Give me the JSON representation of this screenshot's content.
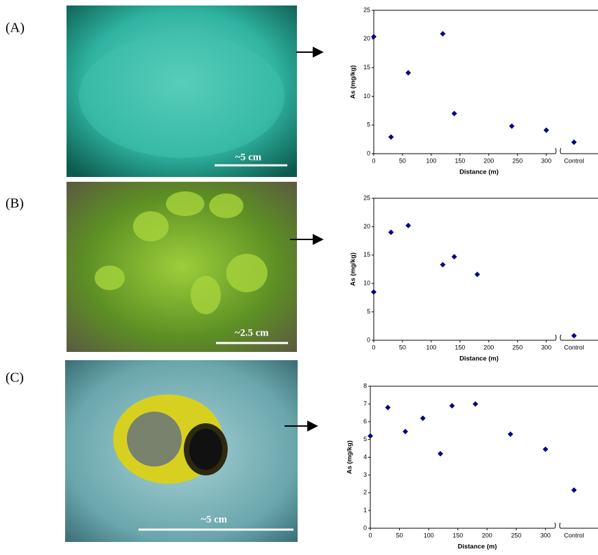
{
  "panels": [
    {
      "label": "(A)",
      "scale": "~5 cm"
    },
    {
      "label": "(B)",
      "scale": "~2.5 cm"
    },
    {
      "label": "(C)",
      "scale": "~5 cm"
    }
  ],
  "chart_data": [
    {
      "type": "scatter",
      "xlabel": "Distance (m)",
      "ylabel": "As (mg/kg)",
      "color": "#000080",
      "x": [
        0,
        30,
        60,
        120,
        140,
        240,
        300
      ],
      "values": [
        20.4,
        2.9,
        14.1,
        20.9,
        7.0,
        4.8,
        4.1
      ],
      "control": {
        "label": "Control",
        "value": 2.0
      },
      "xlim": [
        0,
        316
      ],
      "xticks": [
        0,
        50,
        100,
        150,
        200,
        250,
        300
      ],
      "ylim": [
        0,
        25
      ],
      "yticks": [
        0,
        5,
        10,
        15,
        20,
        25
      ]
    },
    {
      "type": "scatter",
      "xlabel": "Distance (m)",
      "ylabel": "As (mg/kg)",
      "color": "#000080",
      "x": [
        0,
        30,
        60,
        120,
        140,
        180
      ],
      "values": [
        8.5,
        19.0,
        20.2,
        13.3,
        14.7,
        11.6
      ],
      "control": {
        "label": "Control",
        "value": 0.8
      },
      "xlim": [
        0,
        316
      ],
      "xticks": [
        0,
        50,
        100,
        150,
        200,
        250,
        300
      ],
      "ylim": [
        0,
        25
      ],
      "yticks": [
        0,
        5,
        10,
        15,
        20,
        25
      ]
    },
    {
      "type": "scatter",
      "xlabel": "Distance (m)",
      "ylabel": "As (mg/kg)",
      "color": "#000080",
      "x": [
        0,
        30,
        60,
        90,
        120,
        140,
        180,
        240,
        300
      ],
      "values": [
        5.2,
        6.8,
        5.45,
        6.2,
        4.2,
        6.9,
        7.0,
        5.3,
        4.45
      ],
      "control": {
        "label": "Control",
        "value": 2.15
      },
      "xlim": [
        0,
        316
      ],
      "xticks": [
        0,
        50,
        100,
        150,
        200,
        250,
        300
      ],
      "ylim": [
        0,
        8
      ],
      "yticks": [
        0,
        1,
        2,
        3,
        4,
        5,
        6,
        7,
        8
      ]
    }
  ]
}
